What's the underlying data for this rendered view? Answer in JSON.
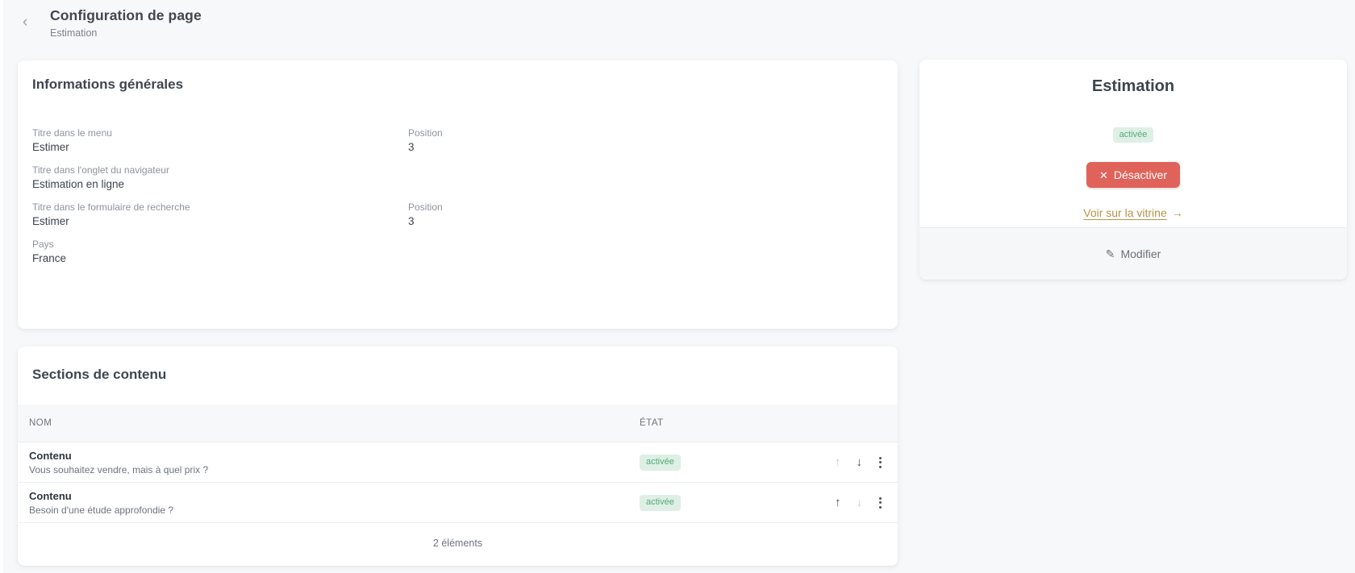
{
  "header": {
    "title": "Configuration de page",
    "subtitle": "Estimation"
  },
  "icons": {
    "back": "‹",
    "close": "✕",
    "arrow_right": "→",
    "pencil": "✎",
    "arrow_up": "↑",
    "arrow_down": "↓"
  },
  "general_card": {
    "title": "Informations générales",
    "fields": [
      {
        "label": "Titre dans le menu",
        "value": "Estimer",
        "position_label": "Position",
        "position_value": "3"
      },
      {
        "label": "Titre dans l'onglet du navigateur",
        "value": "Estimation en ligne"
      },
      {
        "label": "Titre dans le formulaire de recherche",
        "value": "Estimer",
        "position_label": "Position",
        "position_value": "3"
      },
      {
        "label": "Pays",
        "value": "France"
      }
    ]
  },
  "status_card": {
    "title": "Estimation",
    "badge": "activée",
    "deactivate_label": "Désactiver",
    "view_link_label": "Voir sur la vitrine",
    "edit_label": "Modifier"
  },
  "sections_card": {
    "title": "Sections de contenu",
    "columns": {
      "name": "NOM",
      "state": "ÉTAT"
    },
    "rows": [
      {
        "name": "Contenu",
        "description": "Vous souhaitez vendre, mais à quel prix ?",
        "state": "activée",
        "up_enabled": false,
        "down_enabled": true
      },
      {
        "name": "Contenu",
        "description": "Besoin d'une étude approfondie ?",
        "state": "activée",
        "up_enabled": true,
        "down_enabled": false
      }
    ],
    "footer": "2 éléments"
  },
  "colors": {
    "page_bg": "#f7f8f9",
    "accent_red": "#e0635b",
    "badge_bg": "#def0e6",
    "badge_text": "#56a878",
    "link_gold": "#b5934b"
  }
}
